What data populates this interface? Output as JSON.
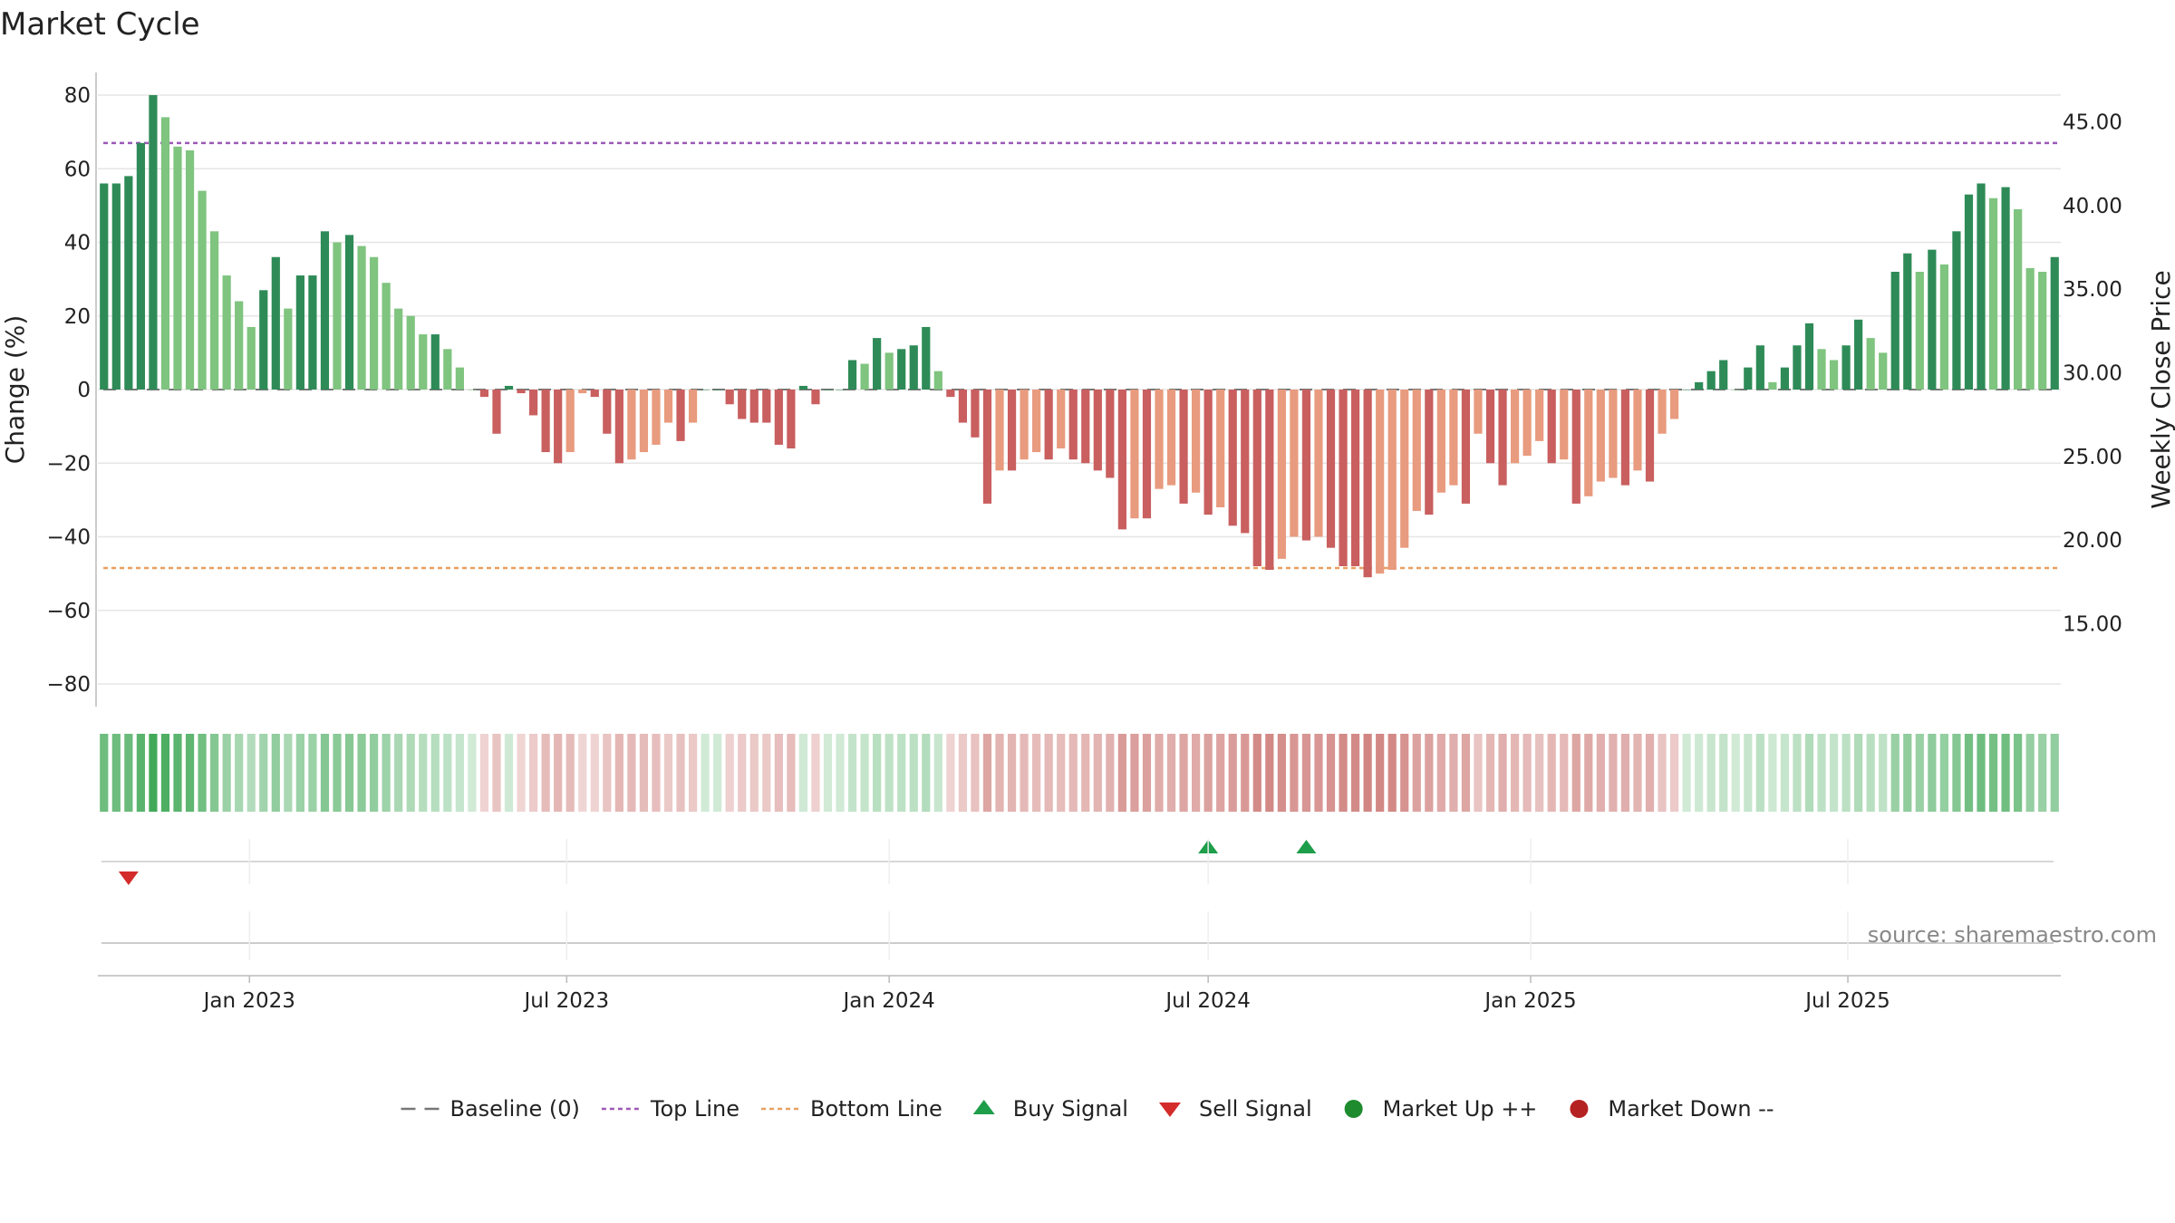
{
  "chart_data": {
    "type": "bar",
    "title": "Market Cycle",
    "ylabel": "Change (%)",
    "y2label": "Weekly Close Price",
    "ylim": [
      -80,
      80
    ],
    "yticks": [
      80,
      60,
      40,
      20,
      0,
      -20,
      -40,
      -60,
      -80
    ],
    "ytick_labels": [
      "80",
      "60",
      "40",
      "20",
      "0",
      "−20",
      "−40",
      "−60",
      "−80"
    ],
    "y2lim": [
      11.4,
      46.6
    ],
    "y2ticks": [
      45,
      40,
      35,
      30,
      25,
      20,
      15
    ],
    "y2tick_labels": [
      "45.00",
      "40.00",
      "35.00",
      "30.00",
      "25.00",
      "20.00",
      "15.00"
    ],
    "top_line": 67,
    "bottom_line": -48.5,
    "start_date": "2022-10-10",
    "week_step_days": 7,
    "values": [
      56,
      56,
      58,
      67,
      80,
      74,
      66,
      65,
      54,
      43,
      31,
      24,
      17,
      27,
      36,
      22,
      31,
      31,
      43,
      40,
      42,
      39,
      36,
      29,
      22,
      20,
      15,
      15,
      11,
      6,
      0,
      -2,
      -12,
      1,
      -1,
      -7,
      -17,
      -20,
      -17,
      -1,
      -2,
      -12,
      -20,
      -19,
      -17,
      -15,
      -9,
      -14,
      -9,
      0,
      0,
      -4,
      -8,
      -9,
      -9,
      -15,
      -16,
      1,
      -4,
      0,
      0,
      8,
      7,
      14,
      10,
      11,
      12,
      17,
      5,
      -2,
      -9,
      -13,
      -31,
      -22,
      -22,
      -19,
      -17,
      -19,
      -16,
      -19,
      -20,
      -22,
      -24,
      -38,
      -35,
      -35,
      -27,
      -26,
      -31,
      -28,
      -34,
      -32,
      -37,
      -39,
      -48,
      -49,
      -46,
      -40,
      -41,
      -40,
      -43,
      -48,
      -48,
      -51,
      -50,
      -49,
      -43,
      -33,
      -34,
      -28,
      -26,
      -31,
      -12,
      -20,
      -26,
      -20,
      -18,
      -14,
      -20,
      -19,
      -31,
      -29,
      -25,
      -24,
      -26,
      -22,
      -25,
      -12,
      -8,
      0,
      2,
      5,
      8,
      0,
      6,
      12,
      2,
      6,
      12,
      18,
      11,
      8,
      12,
      19,
      14,
      10,
      32,
      37,
      32,
      38,
      34,
      43,
      53,
      56,
      52,
      55,
      49,
      33,
      32,
      36
    ],
    "x_ticks": [
      {
        "label": "Jan 2023",
        "date": "2023-01-01"
      },
      {
        "label": "Jul 2023",
        "date": "2023-07-01"
      },
      {
        "label": "Jan 2024",
        "date": "2024-01-01"
      },
      {
        "label": "Jul 2024",
        "date": "2024-07-01"
      },
      {
        "label": "Jan 2025",
        "date": "2025-01-01"
      },
      {
        "label": "Jul 2025",
        "date": "2025-07-01"
      }
    ],
    "buy_signals": [
      "2024-07-01",
      "2024-08-26"
    ],
    "sell_signals": [
      "2022-10-24"
    ],
    "grid": true,
    "legend_position": "bottom-center",
    "legend": [
      {
        "label": "Baseline (0)",
        "marker": "dashed-line",
        "color": "#777777"
      },
      {
        "label": "Top Line",
        "marker": "dotted-line",
        "color": "#9b59b6"
      },
      {
        "label": "Bottom Line",
        "marker": "dotted-line",
        "color": "#e8a060"
      },
      {
        "label": "Buy Signal",
        "marker": "triangle-up",
        "color": "#1e9e4a"
      },
      {
        "label": "Sell Signal",
        "marker": "triangle-down",
        "color": "#d42b2b"
      },
      {
        "label": "Market Up ++",
        "marker": "circle",
        "color": "#1e8b2e"
      },
      {
        "label": "Market Down --",
        "marker": "circle",
        "color": "#b52222"
      }
    ],
    "source": "source: sharemaestro.com",
    "colors": {
      "strong_up": "#2e8b57",
      "weak_up": "#7fc47f",
      "strong_down": "#c95f5f",
      "weak_down": "#e89b7e",
      "top_line": "#9b59b6",
      "bottom_line": "#e8a060",
      "baseline": "#777777",
      "buy": "#1e9e4a",
      "sell": "#d42b2b"
    }
  }
}
